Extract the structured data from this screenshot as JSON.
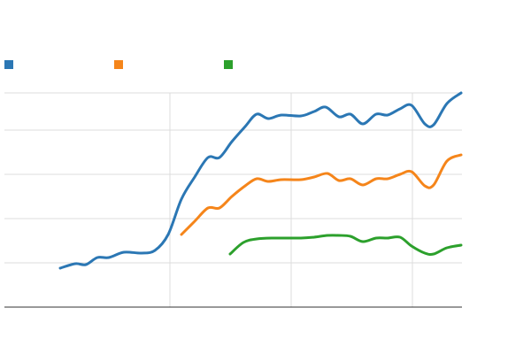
{
  "chart_data": {
    "type": "line",
    "legend": "top-left",
    "grid": true,
    "xlim": [
      5,
      522
    ],
    "xticks": [
      192,
      329,
      466
    ],
    "ylim": [
      0,
      242
    ],
    "yticks": [
      0,
      50,
      100,
      150,
      200
    ],
    "series": [
      {
        "color": "#2b77b4",
        "x": [
          68,
          85,
          97,
          110,
          123,
          140,
          160,
          175,
          190,
          205,
          220,
          235,
          248,
          262,
          277,
          290,
          303,
          318,
          340,
          355,
          368,
          383,
          396,
          410,
          425,
          438,
          452,
          465,
          480,
          490,
          505,
          521
        ],
        "values": [
          44,
          49,
          48,
          56,
          56,
          62,
          61,
          64,
          82,
          122,
          147,
          169,
          169,
          187,
          204,
          218,
          213,
          217,
          216,
          221,
          226,
          215,
          218,
          207,
          218,
          217,
          224,
          228,
          207,
          206,
          230,
          242
        ]
      },
      {
        "color": "#f5851a",
        "x": [
          205,
          220,
          235,
          248,
          262,
          277,
          290,
          303,
          318,
          340,
          355,
          370,
          383,
          396,
          410,
          425,
          438,
          452,
          465,
          480,
          490,
          505,
          521
        ],
        "values": [
          82,
          97,
          112,
          112,
          125,
          137,
          145,
          142,
          144,
          144,
          147,
          151,
          143,
          145,
          138,
          145,
          145,
          150,
          153,
          137,
          138,
          165,
          172
        ]
      },
      {
        "color": "#2ca02c",
        "x": [
          260,
          275,
          290,
          310,
          340,
          355,
          370,
          383,
          396,
          410,
          425,
          438,
          452,
          465,
          480,
          490,
          505,
          521
        ],
        "values": [
          60,
          73,
          77,
          78,
          78,
          79,
          81,
          81,
          80,
          74,
          78,
          78,
          79,
          69,
          61,
          60,
          67,
          70
        ]
      }
    ]
  }
}
